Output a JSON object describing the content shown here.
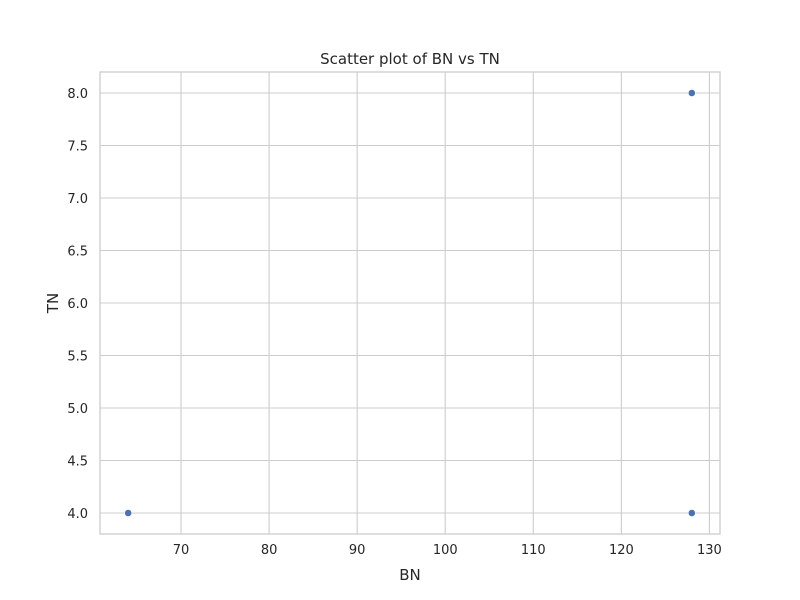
{
  "chart_data": {
    "type": "scatter",
    "title": "Scatter plot of BN vs TN",
    "xlabel": "BN",
    "ylabel": "TN",
    "xlim": [
      60.8,
      131.2
    ],
    "ylim": [
      3.8,
      8.2
    ],
    "xticks": [
      70,
      80,
      90,
      100,
      110,
      120,
      130
    ],
    "yticks": [
      4.0,
      4.5,
      5.0,
      5.5,
      6.0,
      6.5,
      7.0,
      7.5,
      8.0
    ],
    "xtick_labels": [
      "70",
      "80",
      "90",
      "100",
      "110",
      "120",
      "130"
    ],
    "ytick_labels": [
      "4.0",
      "4.5",
      "5.0",
      "5.5",
      "6.0",
      "6.5",
      "7.0",
      "7.5",
      "8.0"
    ],
    "grid": true,
    "points": [
      {
        "x": 64,
        "y": 4.0
      },
      {
        "x": 128,
        "y": 4.0
      },
      {
        "x": 128,
        "y": 8.0
      }
    ],
    "point_color": "#4c72b0",
    "grid_color": "#cccccc"
  }
}
